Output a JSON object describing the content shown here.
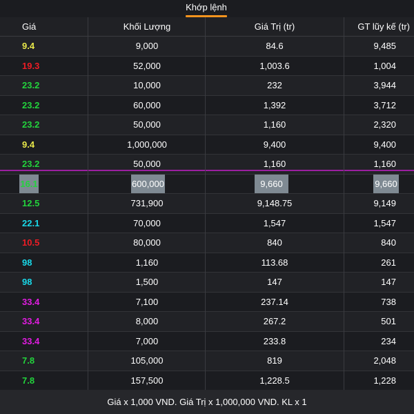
{
  "tab": {
    "label": "Khớp lệnh"
  },
  "columns": {
    "price": "Giá",
    "volume": "Khối Lượng",
    "value": "Giá Trị (tr)",
    "cumulative": "GT lũy kế (tr)"
  },
  "colors": {
    "yellow": "#e8e84a",
    "red": "#ee1c25",
    "green": "#22d33c",
    "cyan": "#19d8e8",
    "magenta": "#e01ce0",
    "accent": "#f7941d",
    "highlight_line": "#9b1fa0"
  },
  "rows": [
    {
      "price": "9.4",
      "color": "yellow",
      "volume": "9,000",
      "value": "84.6",
      "cumulative": "9,485"
    },
    {
      "price": "19.3",
      "color": "red",
      "volume": "52,000",
      "value": "1,003.6",
      "cumulative": "1,004"
    },
    {
      "price": "23.2",
      "color": "green",
      "volume": "10,000",
      "value": "232",
      "cumulative": "3,944"
    },
    {
      "price": "23.2",
      "color": "green",
      "volume": "60,000",
      "value": "1,392",
      "cumulative": "3,712"
    },
    {
      "price": "23.2",
      "color": "green",
      "volume": "50,000",
      "value": "1,160",
      "cumulative": "2,320"
    },
    {
      "price": "9.4",
      "color": "yellow",
      "volume": "1,000,000",
      "value": "9,400",
      "cumulative": "9,400"
    },
    {
      "price": "23.2",
      "color": "green",
      "volume": "50,000",
      "value": "1,160",
      "cumulative": "1,160"
    },
    {
      "price": "16.1",
      "color": "green",
      "volume": "600,000",
      "value": "9,660",
      "cumulative": "9,660",
      "highlighted": true
    },
    {
      "price": "12.5",
      "color": "green",
      "volume": "731,900",
      "value": "9,148.75",
      "cumulative": "9,149"
    },
    {
      "price": "22.1",
      "color": "cyan",
      "volume": "70,000",
      "value": "1,547",
      "cumulative": "1,547"
    },
    {
      "price": "10.5",
      "color": "red",
      "volume": "80,000",
      "value": "840",
      "cumulative": "840"
    },
    {
      "price": "98",
      "color": "cyan",
      "volume": "1,160",
      "value": "113.68",
      "cumulative": "261"
    },
    {
      "price": "98",
      "color": "cyan",
      "volume": "1,500",
      "value": "147",
      "cumulative": "147"
    },
    {
      "price": "33.4",
      "color": "magenta",
      "volume": "7,100",
      "value": "237.14",
      "cumulative": "738"
    },
    {
      "price": "33.4",
      "color": "magenta",
      "volume": "8,000",
      "value": "267.2",
      "cumulative": "501"
    },
    {
      "price": "33.4",
      "color": "magenta",
      "volume": "7,000",
      "value": "233.8",
      "cumulative": "234"
    },
    {
      "price": "7.8",
      "color": "green",
      "volume": "105,000",
      "value": "819",
      "cumulative": "2,048"
    },
    {
      "price": "7.8",
      "color": "green",
      "volume": "157,500",
      "value": "1,228.5",
      "cumulative": "1,228"
    }
  ],
  "footer": {
    "note": "Giá x 1,000 VND. Giá Trị x 1,000,000 VND. KL x 1"
  }
}
